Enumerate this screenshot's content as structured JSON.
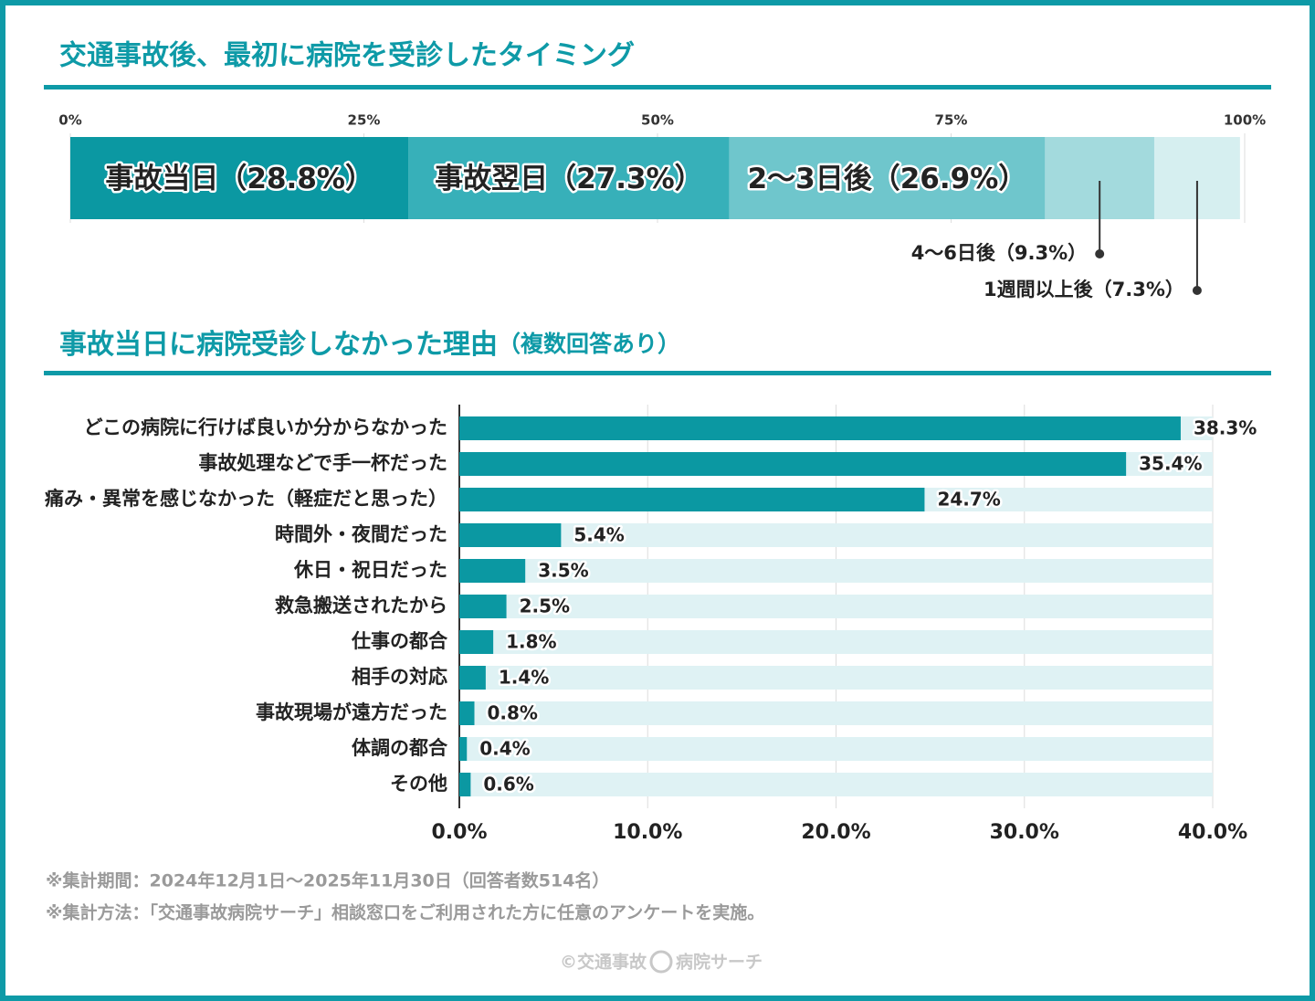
{
  "chart_data": [
    {
      "type": "stacked-bar",
      "title": "交通事故後、最初に病院を受診したタイミング",
      "xlim": [
        0,
        100
      ],
      "xticks": [
        {
          "value": 0,
          "label": "0%"
        },
        {
          "value": 25,
          "label": "25%"
        },
        {
          "value": 50,
          "label": "50%"
        },
        {
          "value": 75,
          "label": "75%"
        },
        {
          "value": 100,
          "label": "100%"
        }
      ],
      "series": [
        {
          "name": "事故当日",
          "color": "#0b98a2",
          "values": [
            28.8
          ],
          "value_labels": [
            "（28.8%）"
          ]
        },
        {
          "name": "事故翌日",
          "color": "#37b0b9",
          "values": [
            27.3
          ],
          "value_labels": [
            "（27.3%）"
          ]
        },
        {
          "name": "2〜3日後",
          "color": "#6fc6cc",
          "values": [
            26.9
          ],
          "value_labels": [
            "（26.9%）"
          ]
        },
        {
          "name": "4〜6日後",
          "color": "#a3dadd",
          "values": [
            9.3
          ],
          "value_labels": [
            "（9.3%）"
          ]
        },
        {
          "name": "1週間以上後",
          "color": "#d6eff0",
          "values": [
            7.3
          ],
          "value_labels": [
            "（7.3%）"
          ]
        }
      ]
    },
    {
      "type": "bar",
      "title": "事故当日に病院受診しなかった理由",
      "subtitle": "（複数回答あり）",
      "color": "#0b98a2",
      "grid": true,
      "xlim": [
        0,
        40
      ],
      "xticks": [
        {
          "value": 0,
          "label": "0.0%"
        },
        {
          "value": 10,
          "label": "10.0%"
        },
        {
          "value": 20,
          "label": "20.0%"
        },
        {
          "value": 30,
          "label": "30.0%"
        },
        {
          "value": 40,
          "label": "40.0%"
        }
      ],
      "categories": [
        "どこの病院に行けば良いか分からなかった",
        "事故処理などで手一杯だった",
        "痛み・異常を感じなかった（軽症だと思った）",
        "時間外・夜間だった",
        "休日・祝日だった",
        "救急搬送されたから",
        "仕事の都合",
        "相手の対応",
        "事故現場が遠方だった",
        "体調の都合",
        "その他"
      ],
      "values": [
        38.3,
        35.4,
        24.7,
        5.4,
        3.5,
        2.5,
        1.8,
        1.4,
        0.8,
        0.4,
        0.6
      ],
      "value_labels": [
        "38.3%",
        "35.4%",
        "24.7%",
        "5.4%",
        "3.5%",
        "2.5%",
        "1.8%",
        "1.4%",
        "0.8%",
        "0.4%",
        "0.6%"
      ]
    }
  ],
  "notes": [
    "※集計期間：2024年12月1日〜2025年11月30日（回答者数514名）",
    "※集計方法：「交通事故病院サーチ」相談窓口をご利用された方に任意のアンケートを実施。"
  ],
  "credit": [
    "©交通事故",
    "病院サーチ"
  ]
}
